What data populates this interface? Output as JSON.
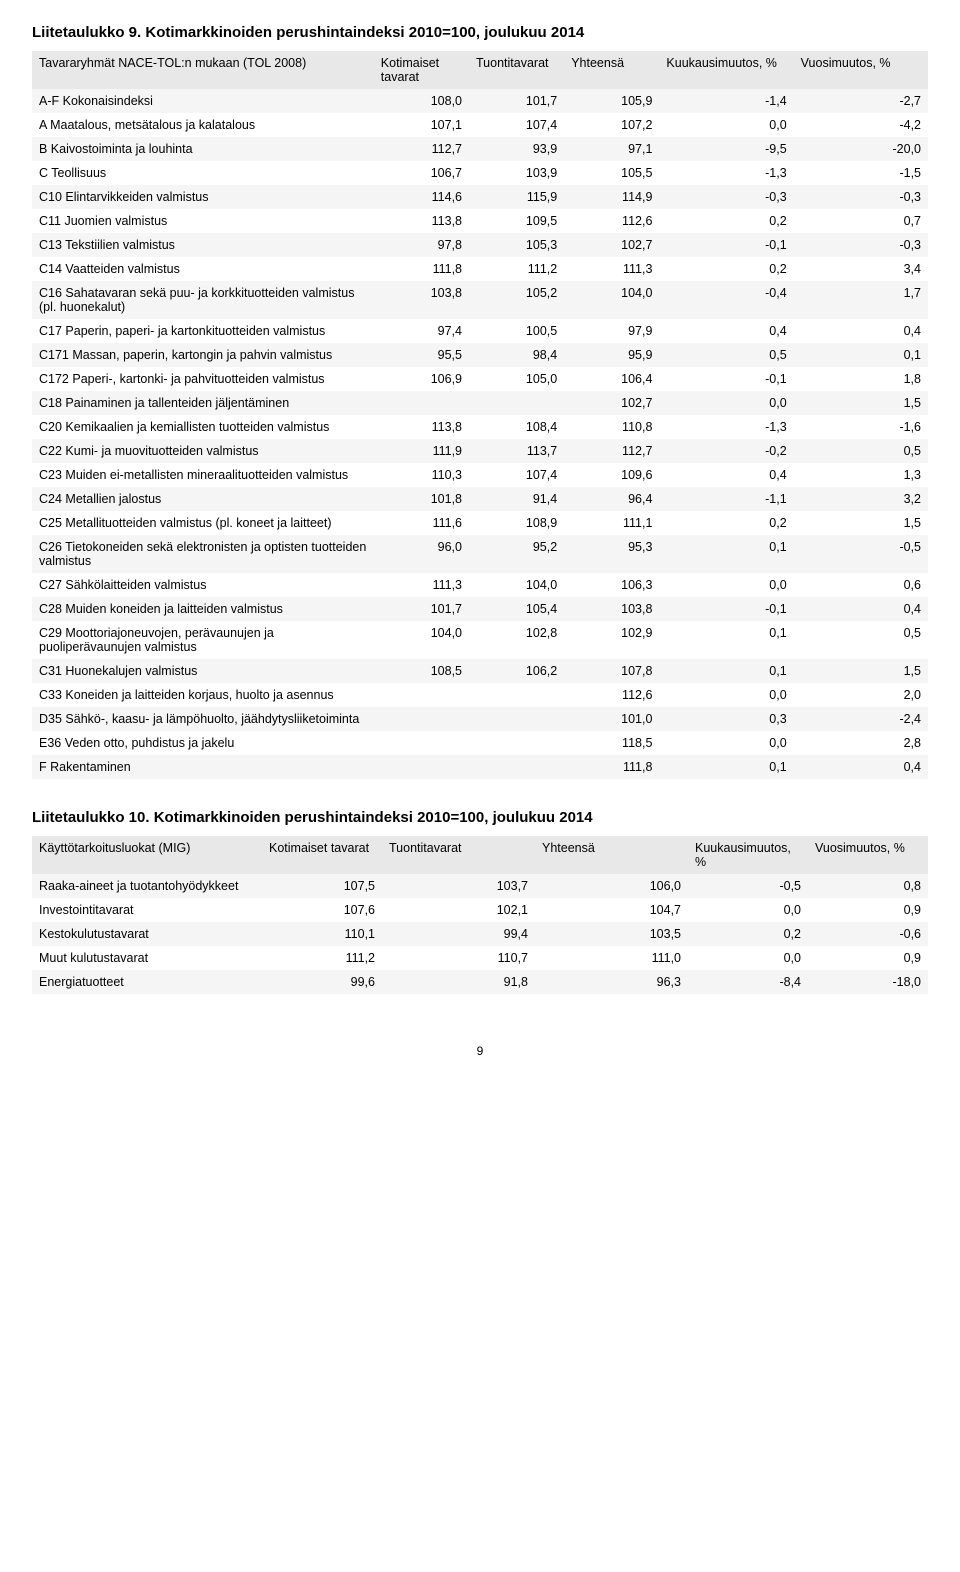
{
  "table1": {
    "title": "Liitetaulukko 9. Kotimarkkinoiden perushintaindeksi 2010=100, joulukuu 2014",
    "headers": [
      "Tavararyhmät NACE-TOL:n mukaan (TOL 2008)",
      "Kotimaiset tavarat",
      "Tuontitavarat",
      "Yhteensä",
      "Kuukausimuutos, %",
      "Vuosimuutos, %"
    ],
    "rows": [
      {
        "label": "A-F Kokonaisindeksi",
        "v": [
          "108,0",
          "101,7",
          "105,9",
          "-1,4",
          "-2,7"
        ]
      },
      {
        "label": "A Maatalous, metsätalous ja kalatalous",
        "v": [
          "107,1",
          "107,4",
          "107,2",
          "0,0",
          "-4,2"
        ]
      },
      {
        "label": "B Kaivostoiminta ja louhinta",
        "v": [
          "112,7",
          "93,9",
          "97,1",
          "-9,5",
          "-20,0"
        ]
      },
      {
        "label": "C Teollisuus",
        "v": [
          "106,7",
          "103,9",
          "105,5",
          "-1,3",
          "-1,5"
        ]
      },
      {
        "label": "C10 Elintarvikkeiden valmistus",
        "v": [
          "114,6",
          "115,9",
          "114,9",
          "-0,3",
          "-0,3"
        ]
      },
      {
        "label": "C11 Juomien valmistus",
        "v": [
          "113,8",
          "109,5",
          "112,6",
          "0,2",
          "0,7"
        ]
      },
      {
        "label": "C13 Tekstiilien valmistus",
        "v": [
          "97,8",
          "105,3",
          "102,7",
          "-0,1",
          "-0,3"
        ]
      },
      {
        "label": "C14 Vaatteiden valmistus",
        "v": [
          "111,8",
          "111,2",
          "111,3",
          "0,2",
          "3,4"
        ]
      },
      {
        "label": "C16 Sahatavaran sekä puu- ja korkkituotteiden valmistus (pl. huonekalut)",
        "v": [
          "103,8",
          "105,2",
          "104,0",
          "-0,4",
          "1,7"
        ]
      },
      {
        "label": "C17 Paperin, paperi- ja kartonkituotteiden valmistus",
        "v": [
          "97,4",
          "100,5",
          "97,9",
          "0,4",
          "0,4"
        ]
      },
      {
        "label": "C171 Massan, paperin, kartongin ja pahvin valmistus",
        "v": [
          "95,5",
          "98,4",
          "95,9",
          "0,5",
          "0,1"
        ]
      },
      {
        "label": "C172 Paperi-, kartonki- ja pahvituotteiden valmistus",
        "v": [
          "106,9",
          "105,0",
          "106,4",
          "-0,1",
          "1,8"
        ]
      },
      {
        "label": "C18 Painaminen ja tallenteiden jäljentäminen",
        "v": [
          "",
          "",
          "102,7",
          "0,0",
          "1,5"
        ]
      },
      {
        "label": "C20 Kemikaalien ja kemiallisten tuotteiden valmistus",
        "v": [
          "113,8",
          "108,4",
          "110,8",
          "-1,3",
          "-1,6"
        ]
      },
      {
        "label": "C22 Kumi- ja muovituotteiden valmistus",
        "v": [
          "111,9",
          "113,7",
          "112,7",
          "-0,2",
          "0,5"
        ]
      },
      {
        "label": "C23 Muiden ei-metallisten mineraalituotteiden valmistus",
        "v": [
          "110,3",
          "107,4",
          "109,6",
          "0,4",
          "1,3"
        ]
      },
      {
        "label": "C24 Metallien jalostus",
        "v": [
          "101,8",
          "91,4",
          "96,4",
          "-1,1",
          "3,2"
        ]
      },
      {
        "label": "C25 Metallituotteiden valmistus (pl. koneet ja laitteet)",
        "v": [
          "111,6",
          "108,9",
          "111,1",
          "0,2",
          "1,5"
        ]
      },
      {
        "label": "C26 Tietokoneiden sekä elektronisten ja optisten tuotteiden valmistus",
        "v": [
          "96,0",
          "95,2",
          "95,3",
          "0,1",
          "-0,5"
        ]
      },
      {
        "label": "C27 Sähkölaitteiden valmistus",
        "v": [
          "111,3",
          "104,0",
          "106,3",
          "0,0",
          "0,6"
        ]
      },
      {
        "label": "C28 Muiden koneiden ja laitteiden valmistus",
        "v": [
          "101,7",
          "105,4",
          "103,8",
          "-0,1",
          "0,4"
        ]
      },
      {
        "label": "C29 Moottoriajoneuvojen, perävaunujen ja puoliperävaunujen valmistus",
        "v": [
          "104,0",
          "102,8",
          "102,9",
          "0,1",
          "0,5"
        ]
      },
      {
        "label": "C31 Huonekalujen valmistus",
        "v": [
          "108,5",
          "106,2",
          "107,8",
          "0,1",
          "1,5"
        ]
      },
      {
        "label": "C33 Koneiden ja laitteiden korjaus, huolto ja asennus",
        "v": [
          "",
          "",
          "112,6",
          "0,0",
          "2,0"
        ]
      },
      {
        "label": "D35 Sähkö-, kaasu- ja lämpöhuolto, jäähdytysliiketoiminta",
        "v": [
          "",
          "",
          "101,0",
          "0,3",
          "-2,4"
        ]
      },
      {
        "label": "E36 Veden otto, puhdistus ja jakelu",
        "v": [
          "",
          "",
          "118,5",
          "0,0",
          "2,8"
        ]
      },
      {
        "label": "F Rakentaminen",
        "v": [
          "",
          "",
          "111,8",
          "0,1",
          "0,4"
        ]
      }
    ]
  },
  "table2": {
    "title": "Liitetaulukko 10. Kotimarkkinoiden perushintaindeksi 2010=100, joulukuu 2014",
    "headers": [
      "Käyttötarkoitusluokat (MIG)",
      "Kotimaiset tavarat",
      "Tuontitavarat",
      "Yhteensä",
      "Kuukausimuutos, %",
      "Vuosimuutos, %"
    ],
    "rows": [
      {
        "label": "Raaka-aineet ja tuotantohyödykkeet",
        "v": [
          "107,5",
          "103,7",
          "106,0",
          "-0,5",
          "0,8"
        ]
      },
      {
        "label": "Investointitavarat",
        "v": [
          "107,6",
          "102,1",
          "104,7",
          "0,0",
          "0,9"
        ]
      },
      {
        "label": "Kestokulutustavarat",
        "v": [
          "110,1",
          "99,4",
          "103,5",
          "0,2",
          "-0,6"
        ]
      },
      {
        "label": "Muut kulutustavarat",
        "v": [
          "111,2",
          "110,7",
          "111,0",
          "0,0",
          "0,9"
        ]
      },
      {
        "label": "Energiatuotteet",
        "v": [
          "99,6",
          "91,8",
          "96,3",
          "-8,4",
          "-18,0"
        ]
      }
    ]
  },
  "page_number": "9"
}
